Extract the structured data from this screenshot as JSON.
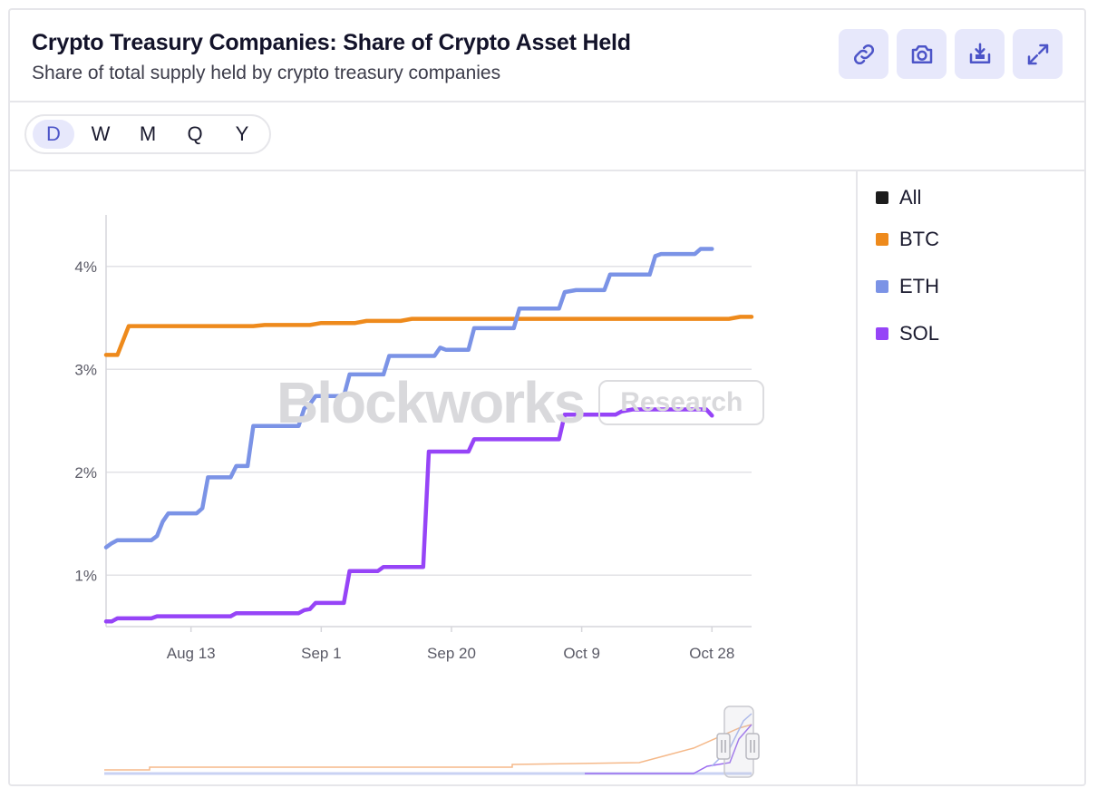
{
  "header": {
    "title": "Crypto Treasury Companies: Share of Crypto Asset Held",
    "subtitle": "Share of total supply held by crypto treasury companies"
  },
  "toolbar": {
    "icons": [
      "link-icon",
      "camera-icon",
      "download-icon",
      "expand-icon"
    ]
  },
  "periods": {
    "items": [
      "D",
      "W",
      "M",
      "Q",
      "Y"
    ],
    "selected": "D"
  },
  "legend": {
    "items": [
      {
        "label": "All",
        "color": "#1c1c1c"
      },
      {
        "label": "BTC",
        "color": "#ee8a1c"
      },
      {
        "label": "ETH",
        "color": "#7b93e6"
      },
      {
        "label": "SOL",
        "color": "#9644f7"
      }
    ]
  },
  "watermark": {
    "word": "Blockworks",
    "tag": "Research"
  },
  "chart_data": {
    "type": "line",
    "x_ticks": [
      "Aug 13",
      "Sep 1",
      "Sep 20",
      "Oct 9",
      "Oct 28"
    ],
    "y_ticks": [
      "1%",
      "2%",
      "3%",
      "4%"
    ],
    "ylim": [
      0.5,
      4.5
    ],
    "grid": true,
    "legend_position": "right",
    "series": [
      {
        "name": "BTC",
        "color": "#ee8a1c",
        "points": [
          [
            0,
            3.14
          ],
          [
            1,
            3.14
          ],
          [
            2,
            3.42
          ],
          [
            13,
            3.42
          ],
          [
            14,
            3.43
          ],
          [
            18,
            3.43
          ],
          [
            19,
            3.45
          ],
          [
            22,
            3.45
          ],
          [
            23,
            3.47
          ],
          [
            26,
            3.47
          ],
          [
            27,
            3.49
          ],
          [
            55,
            3.49
          ],
          [
            56,
            3.51
          ],
          [
            57,
            3.51
          ]
        ]
      },
      {
        "name": "ETH",
        "color": "#7b93e6",
        "points": [
          [
            0,
            1.27
          ],
          [
            0.5,
            1.31
          ],
          [
            1,
            1.34
          ],
          [
            4,
            1.34
          ],
          [
            4.5,
            1.38
          ],
          [
            5,
            1.52
          ],
          [
            5.5,
            1.6
          ],
          [
            8,
            1.6
          ],
          [
            8.5,
            1.65
          ],
          [
            9,
            1.95
          ],
          [
            11,
            1.95
          ],
          [
            11.5,
            2.06
          ],
          [
            12.5,
            2.06
          ],
          [
            13,
            2.45
          ],
          [
            17,
            2.45
          ],
          [
            17.5,
            2.62
          ],
          [
            18,
            2.66
          ],
          [
            18.5,
            2.74
          ],
          [
            21,
            2.74
          ],
          [
            21.5,
            2.95
          ],
          [
            24.5,
            2.95
          ],
          [
            25,
            3.13
          ],
          [
            29,
            3.13
          ],
          [
            29.5,
            3.21
          ],
          [
            30,
            3.19
          ],
          [
            32,
            3.19
          ],
          [
            32.5,
            3.4
          ],
          [
            36,
            3.4
          ],
          [
            36.5,
            3.59
          ],
          [
            40,
            3.59
          ],
          [
            40.5,
            3.75
          ],
          [
            41.5,
            3.77
          ],
          [
            44,
            3.77
          ],
          [
            44.5,
            3.92
          ],
          [
            48,
            3.92
          ],
          [
            48.5,
            4.1
          ],
          [
            49,
            4.12
          ],
          [
            52,
            4.12
          ],
          [
            52.5,
            4.17
          ],
          [
            53.5,
            4.17
          ]
        ]
      },
      {
        "name": "SOL",
        "color": "#9644f7",
        "points": [
          [
            0,
            0.55
          ],
          [
            0.5,
            0.55
          ],
          [
            1,
            0.58
          ],
          [
            4,
            0.58
          ],
          [
            4.5,
            0.6
          ],
          [
            11,
            0.6
          ],
          [
            11.5,
            0.63
          ],
          [
            17,
            0.63
          ],
          [
            17.5,
            0.66
          ],
          [
            18,
            0.67
          ],
          [
            18.5,
            0.73
          ],
          [
            21,
            0.73
          ],
          [
            21.5,
            1.04
          ],
          [
            24,
            1.04
          ],
          [
            24.5,
            1.08
          ],
          [
            28,
            1.08
          ],
          [
            28.5,
            2.2
          ],
          [
            32,
            2.2
          ],
          [
            32.5,
            2.32
          ],
          [
            40,
            2.32
          ],
          [
            40.5,
            2.56
          ],
          [
            45,
            2.56
          ],
          [
            45.5,
            2.59
          ],
          [
            46.5,
            2.61
          ],
          [
            53,
            2.61
          ],
          [
            53.5,
            2.55
          ]
        ]
      }
    ],
    "x_tick_positions": [
      7.5,
      19,
      30.5,
      42,
      53.5
    ],
    "x_range": [
      0,
      57
    ]
  }
}
